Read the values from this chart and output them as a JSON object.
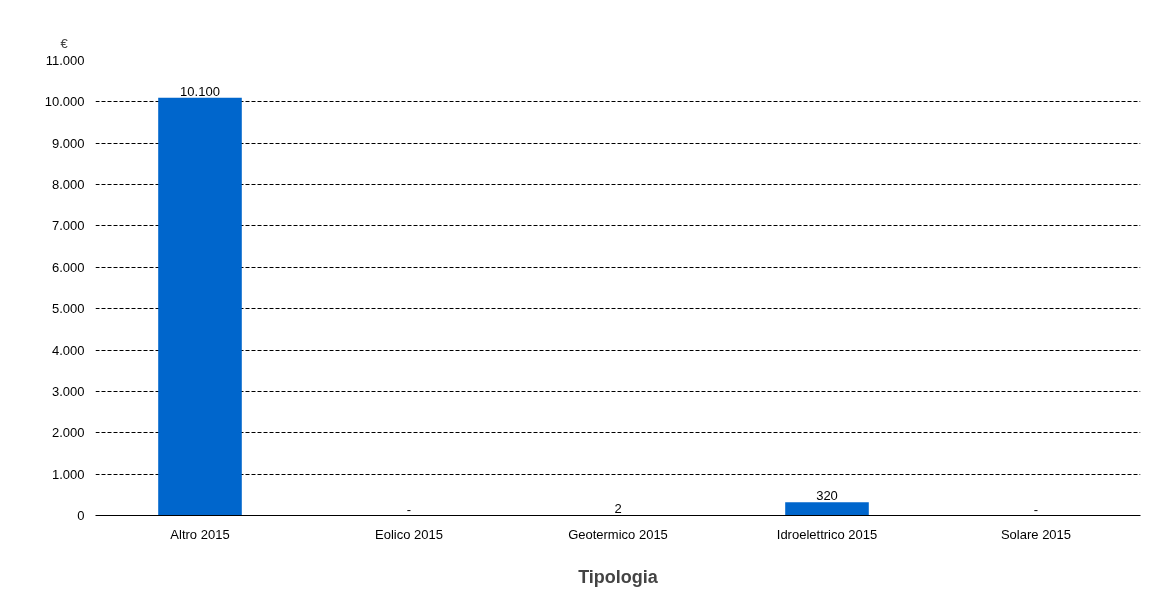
{
  "chart_data": {
    "type": "bar",
    "xlabel": "Tipologia",
    "ylabel": "€",
    "categories": [
      "Altro 2015",
      "Eolico 2015",
      "Geotermico 2015",
      "Idroelettrico 2015",
      "Solare 2015"
    ],
    "values": [
      10100,
      0,
      2,
      320,
      0
    ],
    "value_labels": [
      "10.100",
      "-",
      "2",
      "320",
      "-"
    ],
    "color": "#0066cc",
    "ylim": [
      0,
      11000
    ],
    "yticks": [
      0,
      {
        "value": 1000,
        "label": "1.000"
      },
      {
        "value": 2000,
        "label": "2.000"
      },
      {
        "value": 3000,
        "label": "3.000"
      },
      {
        "value": 4000,
        "label": "4.000"
      },
      {
        "value": 5000,
        "label": "5.000"
      },
      {
        "value": 6000,
        "label": "6.000"
      },
      {
        "value": 7000,
        "label": "7.000"
      },
      {
        "value": 8000,
        "label": "8.000"
      },
      {
        "value": 9000,
        "label": "9.000"
      },
      {
        "value": 10000,
        "label": "10.000"
      },
      {
        "value": 11000,
        "label": "11.000"
      }
    ],
    "grid": "y",
    "line_style": "dashed"
  }
}
